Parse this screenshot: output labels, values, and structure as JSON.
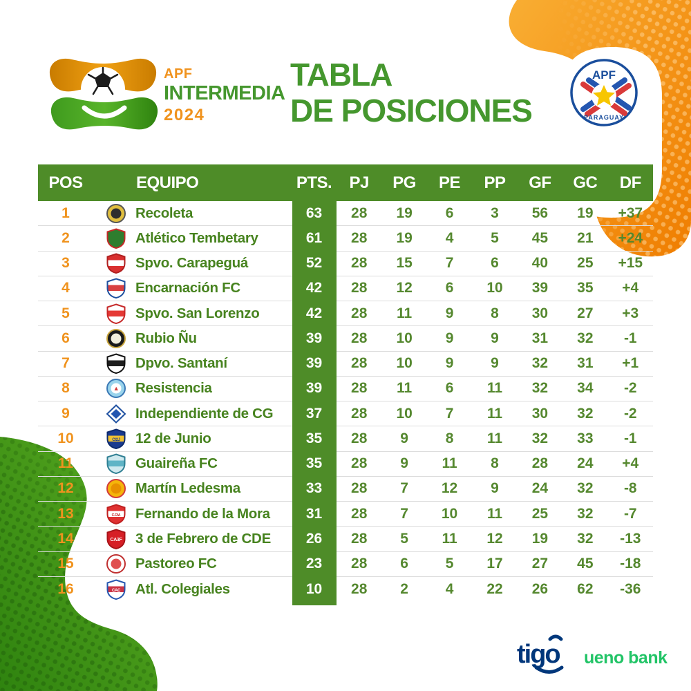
{
  "logo": {
    "org": "APF",
    "competition": "INTERMEDIA",
    "year": "2024"
  },
  "title": {
    "line1": "TABLA",
    "line2": "DE POSICIONES"
  },
  "federation": {
    "org": "APF",
    "country": "PARAGUAY"
  },
  "sponsors": {
    "tigo": "tigo",
    "ueno": "ueno bank"
  },
  "colors": {
    "table_green": "#4E8C28",
    "title_green": "#45972E",
    "orange": "#F0931E",
    "stat_green": "#55882F",
    "team_green": "#47831F",
    "separator": "#DCDCDC",
    "tigo_navy": "#00377B",
    "ueno_green": "#22C467",
    "blob_orange_light": "#F9AE33",
    "blob_orange_dark": "#EF7D00",
    "blob_green_light": "#5BAB22",
    "blob_green_dark": "#2F830F"
  },
  "table": {
    "columns": [
      "POS",
      "EQUIPO",
      "PTS.",
      "PJ",
      "PG",
      "PE",
      "PP",
      "GF",
      "GC",
      "DF"
    ],
    "rows": [
      {
        "pos": 1,
        "name": "Recoleta",
        "pts": 63,
        "pj": 28,
        "pg": 19,
        "pe": 6,
        "pp": 3,
        "gf": 56,
        "gc": 19,
        "df": "+37",
        "crest": {
          "shape": "circle",
          "body": "#E0BE3E",
          "inner": "#2E2E2E",
          "accent": "#555555"
        }
      },
      {
        "pos": 2,
        "name": "Atlético Tembetary",
        "pts": 61,
        "pj": 28,
        "pg": 19,
        "pe": 4,
        "pp": 5,
        "gf": 45,
        "gc": 21,
        "df": "+24",
        "crest": {
          "shape": "shield",
          "body": "#2E7D2E",
          "band": null,
          "accent": "#C62828"
        }
      },
      {
        "pos": 3,
        "name": "Spvo. Carapeguá",
        "pts": 52,
        "pj": 28,
        "pg": 15,
        "pe": 7,
        "pp": 6,
        "gf": 40,
        "gc": 25,
        "df": "+15",
        "crest": {
          "shape": "shield",
          "body": "#D93030",
          "band": "#FFFFFF",
          "accent": "#B02020"
        }
      },
      {
        "pos": 4,
        "name": "Encarnación FC",
        "pts": 42,
        "pj": 28,
        "pg": 12,
        "pe": 6,
        "pp": 10,
        "gf": 39,
        "gc": 35,
        "df": "+4",
        "crest": {
          "shape": "shield",
          "body": "#FFFFFF",
          "band": "#D94040",
          "accent": "#1E50A0"
        }
      },
      {
        "pos": 5,
        "name": "Spvo. San Lorenzo",
        "pts": 42,
        "pj": 28,
        "pg": 11,
        "pe": 9,
        "pp": 8,
        "gf": 30,
        "gc": 27,
        "df": "+3",
        "crest": {
          "shape": "shield",
          "body": "#FFFFFF",
          "band": "#E53935",
          "accent": "#C62828"
        }
      },
      {
        "pos": 6,
        "name": "Rubio Ñu",
        "pts": 39,
        "pj": 28,
        "pg": 10,
        "pe": 9,
        "pp": 9,
        "gf": 31,
        "gc": 32,
        "df": "-1",
        "crest": {
          "shape": "circle",
          "body": "#1A1A1A",
          "inner": "#F2EEDC",
          "accent": "#C9A53D"
        }
      },
      {
        "pos": 7,
        "name": "Dpvo. Santaní",
        "pts": 39,
        "pj": 28,
        "pg": 10,
        "pe": 9,
        "pp": 9,
        "gf": 32,
        "gc": 31,
        "df": "+1",
        "crest": {
          "shape": "shield",
          "body": "#FFFFFF",
          "band": "#1E1E1E",
          "accent": "#111111"
        }
      },
      {
        "pos": 8,
        "name": "Resistencia",
        "pts": 39,
        "pj": 28,
        "pg": 11,
        "pe": 6,
        "pp": 11,
        "gf": 32,
        "gc": 34,
        "df": "-2",
        "crest": {
          "shape": "circle",
          "body": "#9AD4EC",
          "inner": "#FFFFFF",
          "accent": "#3A78B5",
          "letters": "▲",
          "letters_fill": "#D23A3A",
          "letters_size": 9
        }
      },
      {
        "pos": 9,
        "name": "Independiente de CG",
        "pts": 37,
        "pj": 28,
        "pg": 10,
        "pe": 7,
        "pp": 11,
        "gf": 30,
        "gc": 32,
        "df": "-2",
        "crest": {
          "shape": "diamond",
          "body": "#FFFFFF",
          "band": "#2456B0",
          "accent": "#1E50A0"
        }
      },
      {
        "pos": 10,
        "name": "12 de Junio",
        "pts": 35,
        "pj": 28,
        "pg": 9,
        "pe": 8,
        "pp": 11,
        "gf": 32,
        "gc": 33,
        "df": "-1",
        "crest": {
          "shape": "shield",
          "body": "#1A3A8F",
          "band": "#F2C230",
          "accent": "#0D2A6E",
          "letters": "CI2J",
          "letters_fill": "#1A3A8F",
          "letters_size": 6
        }
      },
      {
        "pos": 11,
        "name": "Guaireña FC",
        "pts": 35,
        "pj": 28,
        "pg": 9,
        "pe": 11,
        "pp": 8,
        "gf": 28,
        "gc": 24,
        "df": "+4",
        "crest": {
          "shape": "shield",
          "body": "#CFE9EF",
          "band": "#5FB4C6",
          "accent": "#2F7F93"
        }
      },
      {
        "pos": 12,
        "name": "Martín Ledesma",
        "pts": 33,
        "pj": 28,
        "pg": 7,
        "pe": 12,
        "pp": 9,
        "gf": 24,
        "gc": 32,
        "df": "-8",
        "crest": {
          "shape": "circle",
          "body": "#F5B50A",
          "inner": "#E89000",
          "accent": "#D23A3A"
        }
      },
      {
        "pos": 13,
        "name": "Fernando de la Mora",
        "pts": 31,
        "pj": 28,
        "pg": 7,
        "pe": 10,
        "pp": 11,
        "gf": 25,
        "gc": 32,
        "df": "-7",
        "crest": {
          "shape": "shield",
          "body": "#E03131",
          "band": "#FFFFFF",
          "accent": "#C02020",
          "letters": "C.F.M.",
          "letters_fill": "#C02020",
          "letters_size": 5
        }
      },
      {
        "pos": 14,
        "name": "3 de Febrero de CDE",
        "pts": 26,
        "pj": 28,
        "pg": 5,
        "pe": 11,
        "pp": 12,
        "gf": 19,
        "gc": 32,
        "df": "-13",
        "crest": {
          "shape": "shield",
          "body": "#D61F26",
          "band": null,
          "accent": "#A81419",
          "letters": "CA3F",
          "letters_fill": "#FFFFFF",
          "letters_size": 7
        }
      },
      {
        "pos": 15,
        "name": "Pastoreo FC",
        "pts": 23,
        "pj": 28,
        "pg": 6,
        "pe": 5,
        "pp": 17,
        "gf": 27,
        "gc": 45,
        "df": "-18",
        "crest": {
          "shape": "circle",
          "body": "#FFFFFF",
          "inner": "#E05050",
          "accent": "#C03030"
        }
      },
      {
        "pos": 16,
        "name": "Atl. Colegiales",
        "pts": 10,
        "pj": 28,
        "pg": 2,
        "pe": 4,
        "pp": 22,
        "gf": 26,
        "gc": 62,
        "df": "-36",
        "crest": {
          "shape": "shield",
          "body": "#FFFFFF",
          "band": "#CC3344",
          "accent": "#2456B0",
          "letters": "CAC",
          "letters_fill": "#FFFFFF",
          "letters_size": 6
        }
      }
    ]
  },
  "chart_data": {
    "type": "table",
    "title": "TABLA DE POSICIONES",
    "subtitle": "APF INTERMEDIA 2024",
    "columns": [
      "POS",
      "EQUIPO",
      "PTS.",
      "PJ",
      "PG",
      "PE",
      "PP",
      "GF",
      "GC",
      "DF"
    ],
    "rows": [
      [
        1,
        "Recoleta",
        63,
        28,
        19,
        6,
        3,
        56,
        19,
        "+37"
      ],
      [
        2,
        "Atlético Tembetary",
        61,
        28,
        19,
        4,
        5,
        45,
        21,
        "+24"
      ],
      [
        3,
        "Spvo. Carapeguá",
        52,
        28,
        15,
        7,
        6,
        40,
        25,
        "+15"
      ],
      [
        4,
        "Encarnación FC",
        42,
        28,
        12,
        6,
        10,
        39,
        35,
        "+4"
      ],
      [
        5,
        "Spvo. San Lorenzo",
        42,
        28,
        11,
        9,
        8,
        30,
        27,
        "+3"
      ],
      [
        6,
        "Rubio Ñu",
        39,
        28,
        10,
        9,
        9,
        31,
        32,
        "-1"
      ],
      [
        7,
        "Dpvo. Santaní",
        39,
        28,
        10,
        9,
        9,
        32,
        31,
        "+1"
      ],
      [
        8,
        "Resistencia",
        39,
        28,
        11,
        6,
        11,
        32,
        34,
        "-2"
      ],
      [
        9,
        "Independiente de CG",
        37,
        28,
        10,
        7,
        11,
        30,
        32,
        "-2"
      ],
      [
        10,
        "12 de Junio",
        35,
        28,
        9,
        8,
        11,
        32,
        33,
        "-1"
      ],
      [
        11,
        "Guaireña FC",
        35,
        28,
        9,
        11,
        8,
        28,
        24,
        "+4"
      ],
      [
        12,
        "Martín Ledesma",
        33,
        28,
        7,
        12,
        9,
        24,
        32,
        "-8"
      ],
      [
        13,
        "Fernando de la Mora",
        31,
        28,
        7,
        10,
        11,
        25,
        32,
        "-7"
      ],
      [
        14,
        "3 de Febrero de CDE",
        26,
        28,
        5,
        11,
        12,
        19,
        32,
        "-13"
      ],
      [
        15,
        "Pastoreo FC",
        23,
        28,
        6,
        5,
        17,
        27,
        45,
        "-18"
      ],
      [
        16,
        "Atl. Colegiales",
        10,
        28,
        2,
        4,
        22,
        26,
        62,
        "-36"
      ]
    ]
  }
}
